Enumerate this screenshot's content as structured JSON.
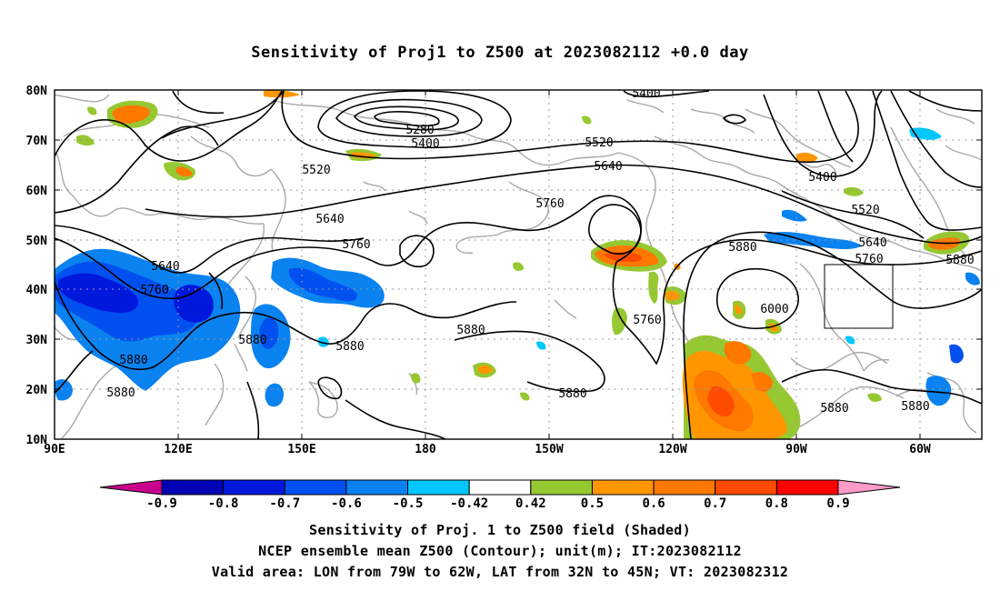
{
  "title": "Sensitivity of Proj1 to Z500 at 2023082112 +0.0 day",
  "map": {
    "lat_labels": [
      "80N",
      "70N",
      "60N",
      "50N",
      "40N",
      "30N",
      "20N",
      "10N"
    ],
    "lon_labels": [
      "90E",
      "120E",
      "150E",
      "180",
      "150W",
      "120W",
      "90W",
      "60W"
    ],
    "extent": {
      "lon_min": "90E",
      "lon_max": "45W",
      "lat_min": "10N",
      "lat_max": "80N"
    },
    "valid_box": {
      "lon_from": "79W",
      "lon_to": "62W",
      "lat_from": "32N",
      "lat_to": "45N"
    },
    "contour_labels": [
      {
        "text": "5400",
        "id": "z5400-a"
      },
      {
        "text": "5280",
        "id": "z5280"
      },
      {
        "text": "5400",
        "id": "z5400-b"
      },
      {
        "text": "5520",
        "id": "z5520-a"
      },
      {
        "text": "5520",
        "id": "z5520-b"
      },
      {
        "text": "5640",
        "id": "z5640-a"
      },
      {
        "text": "5400",
        "id": "z5400-c"
      },
      {
        "text": "5520",
        "id": "z5520-c"
      },
      {
        "text": "5760",
        "id": "z5760-a"
      },
      {
        "text": "5640",
        "id": "z5640-b"
      },
      {
        "text": "5760",
        "id": "z5760-b"
      },
      {
        "text": "5880",
        "id": "z5880-a"
      },
      {
        "text": "5640",
        "id": "z5640-c"
      },
      {
        "text": "5760",
        "id": "z5760-c"
      },
      {
        "text": "5880",
        "id": "z5880-b"
      },
      {
        "text": "5640",
        "id": "z5640-d"
      },
      {
        "text": "5760",
        "id": "z5760-d"
      },
      {
        "text": "6000",
        "id": "z6000"
      },
      {
        "text": "5760",
        "id": "z5760-e"
      },
      {
        "text": "5880",
        "id": "z5880-c"
      },
      {
        "text": "5880",
        "id": "z5880-d"
      },
      {
        "text": "5880",
        "id": "z5880-e"
      },
      {
        "text": "5880",
        "id": "z5880-f"
      },
      {
        "text": "5880",
        "id": "z5880-g"
      },
      {
        "text": "5880",
        "id": "z5880-h"
      },
      {
        "text": "5880",
        "id": "z5880-i"
      },
      {
        "text": "5880",
        "id": "z5880-j"
      }
    ]
  },
  "colorbar": {
    "labels": [
      "-0.9",
      "-0.8",
      "-0.7",
      "-0.6",
      "-0.5",
      "-0.42",
      "0.42",
      "0.5",
      "0.6",
      "0.7",
      "0.8",
      "0.9"
    ],
    "colors": [
      "#0000b4",
      "#0018dc",
      "#0050f0",
      "#0a82f0",
      "#00c8ff",
      "#ffffff",
      "#96c832",
      "#ff9600",
      "#ff7800",
      "#ff4b00",
      "#ff0000"
    ],
    "end_low_color": "#c8008c",
    "end_high_color": "#ff9bc8"
  },
  "caption": {
    "line1": "Sensitivity of Proj. 1 to Z500 field (Shaded)",
    "line2": "NCEP ensemble mean Z500 (Contour); unit(m); IT:2023082112",
    "line3": "Valid area: LON from 79W to 62W, LAT from 32N to 45N; VT: 2023082312"
  }
}
